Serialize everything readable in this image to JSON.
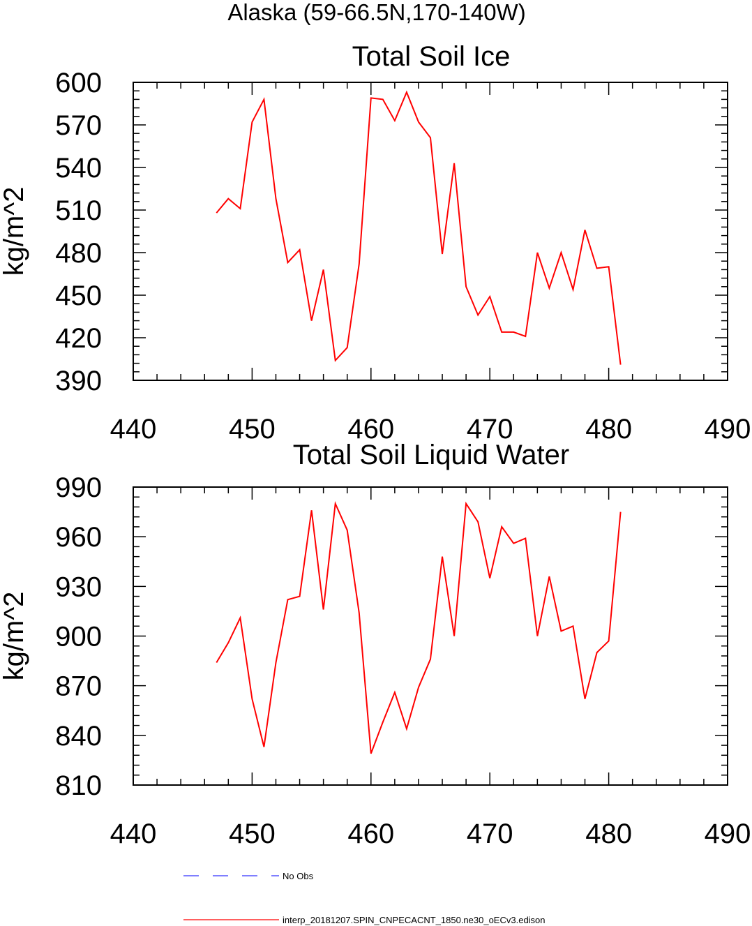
{
  "figure": {
    "title": "Alaska (59-66.5N,170-140W)"
  },
  "chart_data": [
    {
      "type": "line",
      "title": "Total Soil Ice",
      "xlabel": "",
      "ylabel": "kg/m^2",
      "xlim": [
        440,
        490
      ],
      "ylim": [
        390,
        600
      ],
      "xticks": [
        440,
        450,
        460,
        470,
        480,
        490
      ],
      "yticks": [
        390,
        420,
        450,
        480,
        510,
        540,
        570,
        600
      ],
      "series": [
        {
          "name": "interp_20181207.SPIN_CNPECACNT_1850.ne30_oECv3.edison",
          "color": "#ff0000",
          "x": [
            447,
            448,
            449,
            450,
            451,
            452,
            453,
            454,
            455,
            456,
            457,
            458,
            459,
            460,
            461,
            462,
            463,
            464,
            465,
            466,
            467,
            468,
            469,
            470,
            471,
            472,
            473,
            474,
            475,
            476,
            477,
            478,
            479,
            480,
            481
          ],
          "y": [
            508,
            518,
            511,
            572,
            588,
            518,
            473,
            482,
            432,
            468,
            404,
            413,
            472,
            589,
            588,
            573,
            593,
            572,
            561,
            479,
            543,
            456,
            436,
            449,
            424,
            424,
            421,
            480,
            455,
            480,
            454,
            496,
            469,
            470,
            401
          ]
        }
      ]
    },
    {
      "type": "line",
      "title": "Total Soil Liquid Water",
      "xlabel": "",
      "ylabel": "kg/m^2",
      "xlim": [
        440,
        490
      ],
      "ylim": [
        810,
        990
      ],
      "xticks": [
        440,
        450,
        460,
        470,
        480,
        490
      ],
      "yticks": [
        810,
        840,
        870,
        900,
        930,
        960,
        990
      ],
      "series": [
        {
          "name": "interp_20181207.SPIN_CNPECACNT_1850.ne30_oECv3.edison",
          "color": "#ff0000",
          "x": [
            447,
            448,
            449,
            450,
            451,
            452,
            453,
            454,
            455,
            456,
            457,
            458,
            459,
            460,
            461,
            462,
            463,
            464,
            465,
            466,
            467,
            468,
            469,
            470,
            471,
            472,
            473,
            474,
            475,
            476,
            477,
            478,
            479,
            480,
            481
          ],
          "y": [
            884,
            896,
            911,
            862,
            833,
            884,
            922,
            924,
            976,
            916,
            980,
            964,
            914,
            829,
            848,
            866,
            844,
            869,
            886,
            948,
            900,
            980,
            969,
            935,
            966,
            956,
            959,
            900,
            936,
            903,
            906,
            862,
            890,
            897,
            975
          ]
        }
      ]
    }
  ],
  "legend": {
    "items": [
      {
        "label": "No Obs",
        "color": "#3333ff",
        "style": "dashed"
      },
      {
        "label": "interp_20181207.SPIN_CNPECACNT_1850.ne30_oECv3.edison",
        "color": "#ff0000",
        "style": "solid"
      }
    ]
  }
}
